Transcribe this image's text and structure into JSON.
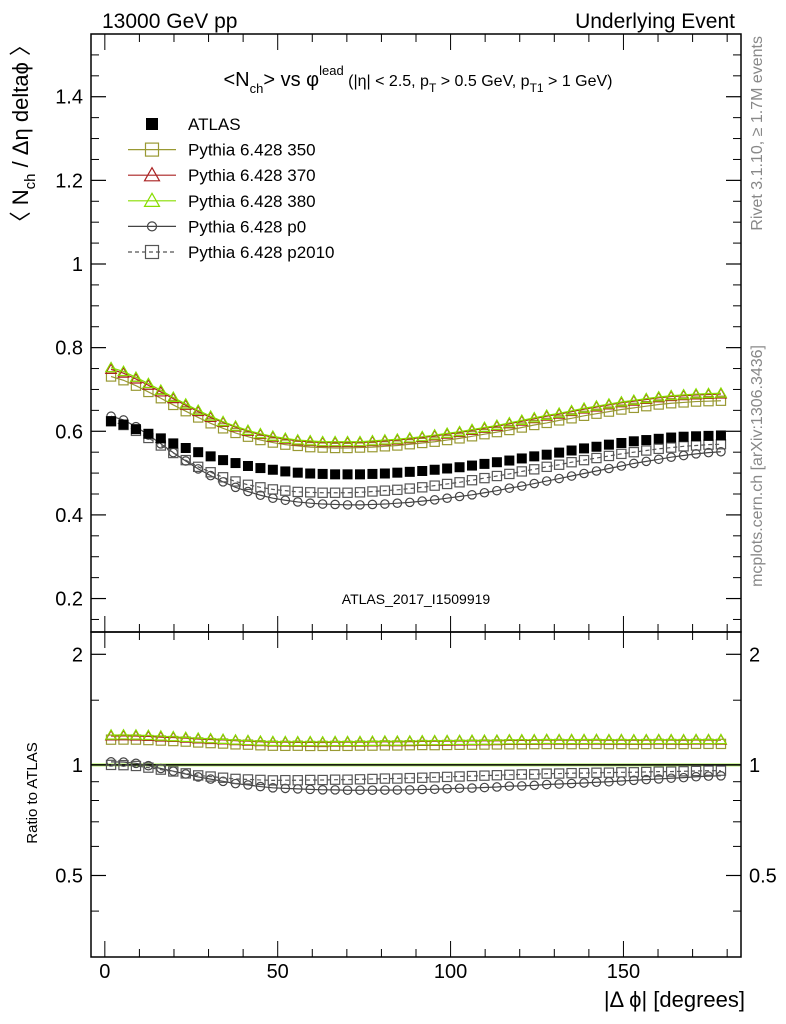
{
  "header": {
    "left": "13000 GeV pp",
    "right": "Underlying Event"
  },
  "side_labels": {
    "rivet": "Rivet 3.1.10, ≥ 1.7M events",
    "mcplots": "mcplots.cern.ch [arXiv:1306.3436]"
  },
  "chart_data": [
    {
      "type": "scatter",
      "title": "<N_ch> vs φ^lead (|η| < 2.5, p_T > 0.5 GeV, p_T1 > 1 GeV)",
      "title_parts": {
        "a": "<N",
        "a_sub": "ch",
        "b": "> vs φ",
        "b_sup": "lead",
        "c": " (|η| < 2.5, p",
        "c_sub": "T",
        "d": " > 0.5 GeV, p",
        "d_sub": "T1",
        "e": " > 1 GeV)"
      },
      "ylabel": "〈 N_ch / Δη deltaϕ 〉",
      "ylabel_parts": {
        "a": "〈 N",
        "sub": "ch",
        "b": " / Δη deltaϕ 〉"
      },
      "watermark": "ATLAS_2017_I1509919",
      "xlim": [
        -4,
        184
      ],
      "ylim": [
        0.12,
        1.55
      ],
      "yticks": [
        0.2,
        0.4,
        0.6,
        0.8,
        1,
        1.2,
        1.4
      ],
      "ytick_labels": [
        "0.2",
        "0.4",
        "0.6",
        "0.8",
        "1",
        "1.2",
        "1.4"
      ],
      "x": [
        1.8,
        5.4,
        9,
        12.6,
        16.2,
        19.8,
        23.4,
        27,
        30.6,
        34.2,
        37.8,
        41.4,
        45,
        48.6,
        52.2,
        55.8,
        59.4,
        63,
        66.6,
        70.2,
        73.8,
        77.4,
        81,
        84.6,
        88.2,
        91.8,
        95.4,
        99,
        102.6,
        106.2,
        109.8,
        113.4,
        117,
        120.6,
        124.2,
        127.8,
        131.4,
        135,
        138.6,
        142.2,
        145.8,
        149.4,
        153,
        156.6,
        160.2,
        163.8,
        167.4,
        171,
        174.6,
        178.2
      ],
      "series": [
        {
          "name": "ATLAS",
          "marker": "filled-square",
          "line": "none",
          "color": "#000000",
          "values": [
            0.624,
            0.616,
            0.605,
            0.594,
            0.583,
            0.571,
            0.56,
            0.55,
            0.54,
            0.531,
            0.524,
            0.517,
            0.512,
            0.508,
            0.504,
            0.501,
            0.499,
            0.498,
            0.497,
            0.497,
            0.497,
            0.498,
            0.499,
            0.501,
            0.503,
            0.505,
            0.508,
            0.511,
            0.514,
            0.518,
            0.522,
            0.526,
            0.53,
            0.535,
            0.54,
            0.544,
            0.549,
            0.554,
            0.559,
            0.563,
            0.568,
            0.572,
            0.576,
            0.579,
            0.582,
            0.585,
            0.587,
            0.588,
            0.589,
            0.59
          ]
        },
        {
          "name": "Pythia 6.428 350",
          "marker": "open-square",
          "line": "solid",
          "color": "#999933",
          "values": [
            0.731,
            0.722,
            0.709,
            0.694,
            0.679,
            0.663,
            0.648,
            0.633,
            0.619,
            0.607,
            0.596,
            0.587,
            0.579,
            0.573,
            0.568,
            0.565,
            0.562,
            0.561,
            0.56,
            0.56,
            0.561,
            0.562,
            0.564,
            0.566,
            0.569,
            0.572,
            0.575,
            0.579,
            0.583,
            0.588,
            0.593,
            0.598,
            0.603,
            0.609,
            0.615,
            0.62,
            0.626,
            0.631,
            0.637,
            0.642,
            0.647,
            0.652,
            0.656,
            0.66,
            0.664,
            0.667,
            0.669,
            0.671,
            0.672,
            0.673
          ]
        },
        {
          "name": "Pythia 6.428 370",
          "marker": "open-triangle",
          "line": "solid",
          "color": "#AA2222",
          "values": [
            0.748,
            0.739,
            0.725,
            0.71,
            0.694,
            0.678,
            0.662,
            0.647,
            0.633,
            0.621,
            0.61,
            0.6,
            0.592,
            0.586,
            0.581,
            0.577,
            0.575,
            0.573,
            0.573,
            0.573,
            0.573,
            0.575,
            0.577,
            0.579,
            0.582,
            0.585,
            0.589,
            0.593,
            0.597,
            0.602,
            0.607,
            0.612,
            0.618,
            0.624,
            0.63,
            0.636,
            0.641,
            0.647,
            0.653,
            0.658,
            0.663,
            0.668,
            0.672,
            0.676,
            0.68,
            0.683,
            0.685,
            0.687,
            0.688,
            0.689
          ]
        },
        {
          "name": "Pythia 6.428 380",
          "marker": "open-triangle",
          "line": "solid",
          "color": "#88DD00",
          "values": [
            0.752,
            0.743,
            0.729,
            0.714,
            0.698,
            0.681,
            0.665,
            0.65,
            0.636,
            0.623,
            0.612,
            0.602,
            0.594,
            0.588,
            0.583,
            0.579,
            0.577,
            0.575,
            0.575,
            0.575,
            0.575,
            0.577,
            0.579,
            0.581,
            0.584,
            0.587,
            0.591,
            0.595,
            0.599,
            0.604,
            0.609,
            0.614,
            0.62,
            0.626,
            0.632,
            0.638,
            0.643,
            0.649,
            0.655,
            0.66,
            0.665,
            0.67,
            0.674,
            0.678,
            0.682,
            0.685,
            0.687,
            0.689,
            0.69,
            0.691
          ]
        },
        {
          "name": "Pythia 6.428 p0",
          "marker": "open-circle",
          "line": "solid",
          "color": "#444444",
          "values": [
            0.636,
            0.627,
            0.611,
            0.591,
            0.57,
            0.549,
            0.529,
            0.51,
            0.494,
            0.479,
            0.466,
            0.456,
            0.447,
            0.44,
            0.435,
            0.431,
            0.428,
            0.426,
            0.425,
            0.424,
            0.424,
            0.425,
            0.426,
            0.428,
            0.43,
            0.433,
            0.436,
            0.44,
            0.444,
            0.448,
            0.453,
            0.458,
            0.464,
            0.469,
            0.475,
            0.481,
            0.487,
            0.493,
            0.499,
            0.505,
            0.511,
            0.517,
            0.523,
            0.528,
            0.533,
            0.538,
            0.542,
            0.546,
            0.549,
            0.551
          ]
        },
        {
          "name": "Pythia 6.428 p2010",
          "marker": "open-square",
          "line": "dashed",
          "color": "#555555",
          "values": [
            0.624,
            0.615,
            0.601,
            0.584,
            0.566,
            0.548,
            0.531,
            0.515,
            0.502,
            0.49,
            0.48,
            0.472,
            0.466,
            0.461,
            0.458,
            0.455,
            0.454,
            0.453,
            0.453,
            0.453,
            0.454,
            0.456,
            0.458,
            0.46,
            0.463,
            0.466,
            0.47,
            0.474,
            0.478,
            0.483,
            0.488,
            0.493,
            0.498,
            0.504,
            0.509,
            0.515,
            0.52,
            0.526,
            0.531,
            0.536,
            0.541,
            0.546,
            0.55,
            0.554,
            0.558,
            0.561,
            0.564,
            0.566,
            0.568,
            0.569
          ]
        }
      ]
    },
    {
      "type": "scatter",
      "xlabel": "|Δ ϕ| [degrees]",
      "ylabel": "Ratio to ATLAS",
      "xlim": [
        -4,
        184
      ],
      "ylim": [
        0.3,
        2.3
      ],
      "yticks": [
        0.5,
        1,
        2
      ],
      "ytick_labels": [
        "0.5",
        "1",
        "2"
      ],
      "xticks": [
        0,
        50,
        100,
        150
      ],
      "xtick_labels": [
        "0",
        "50",
        "100",
        "150"
      ],
      "note": "ratio = series / ATLAS, shown on a log scale",
      "yscale": "log",
      "reference_band": {
        "color": "#AAEE55",
        "values": [
          0.99,
          1.01
        ]
      }
    }
  ]
}
